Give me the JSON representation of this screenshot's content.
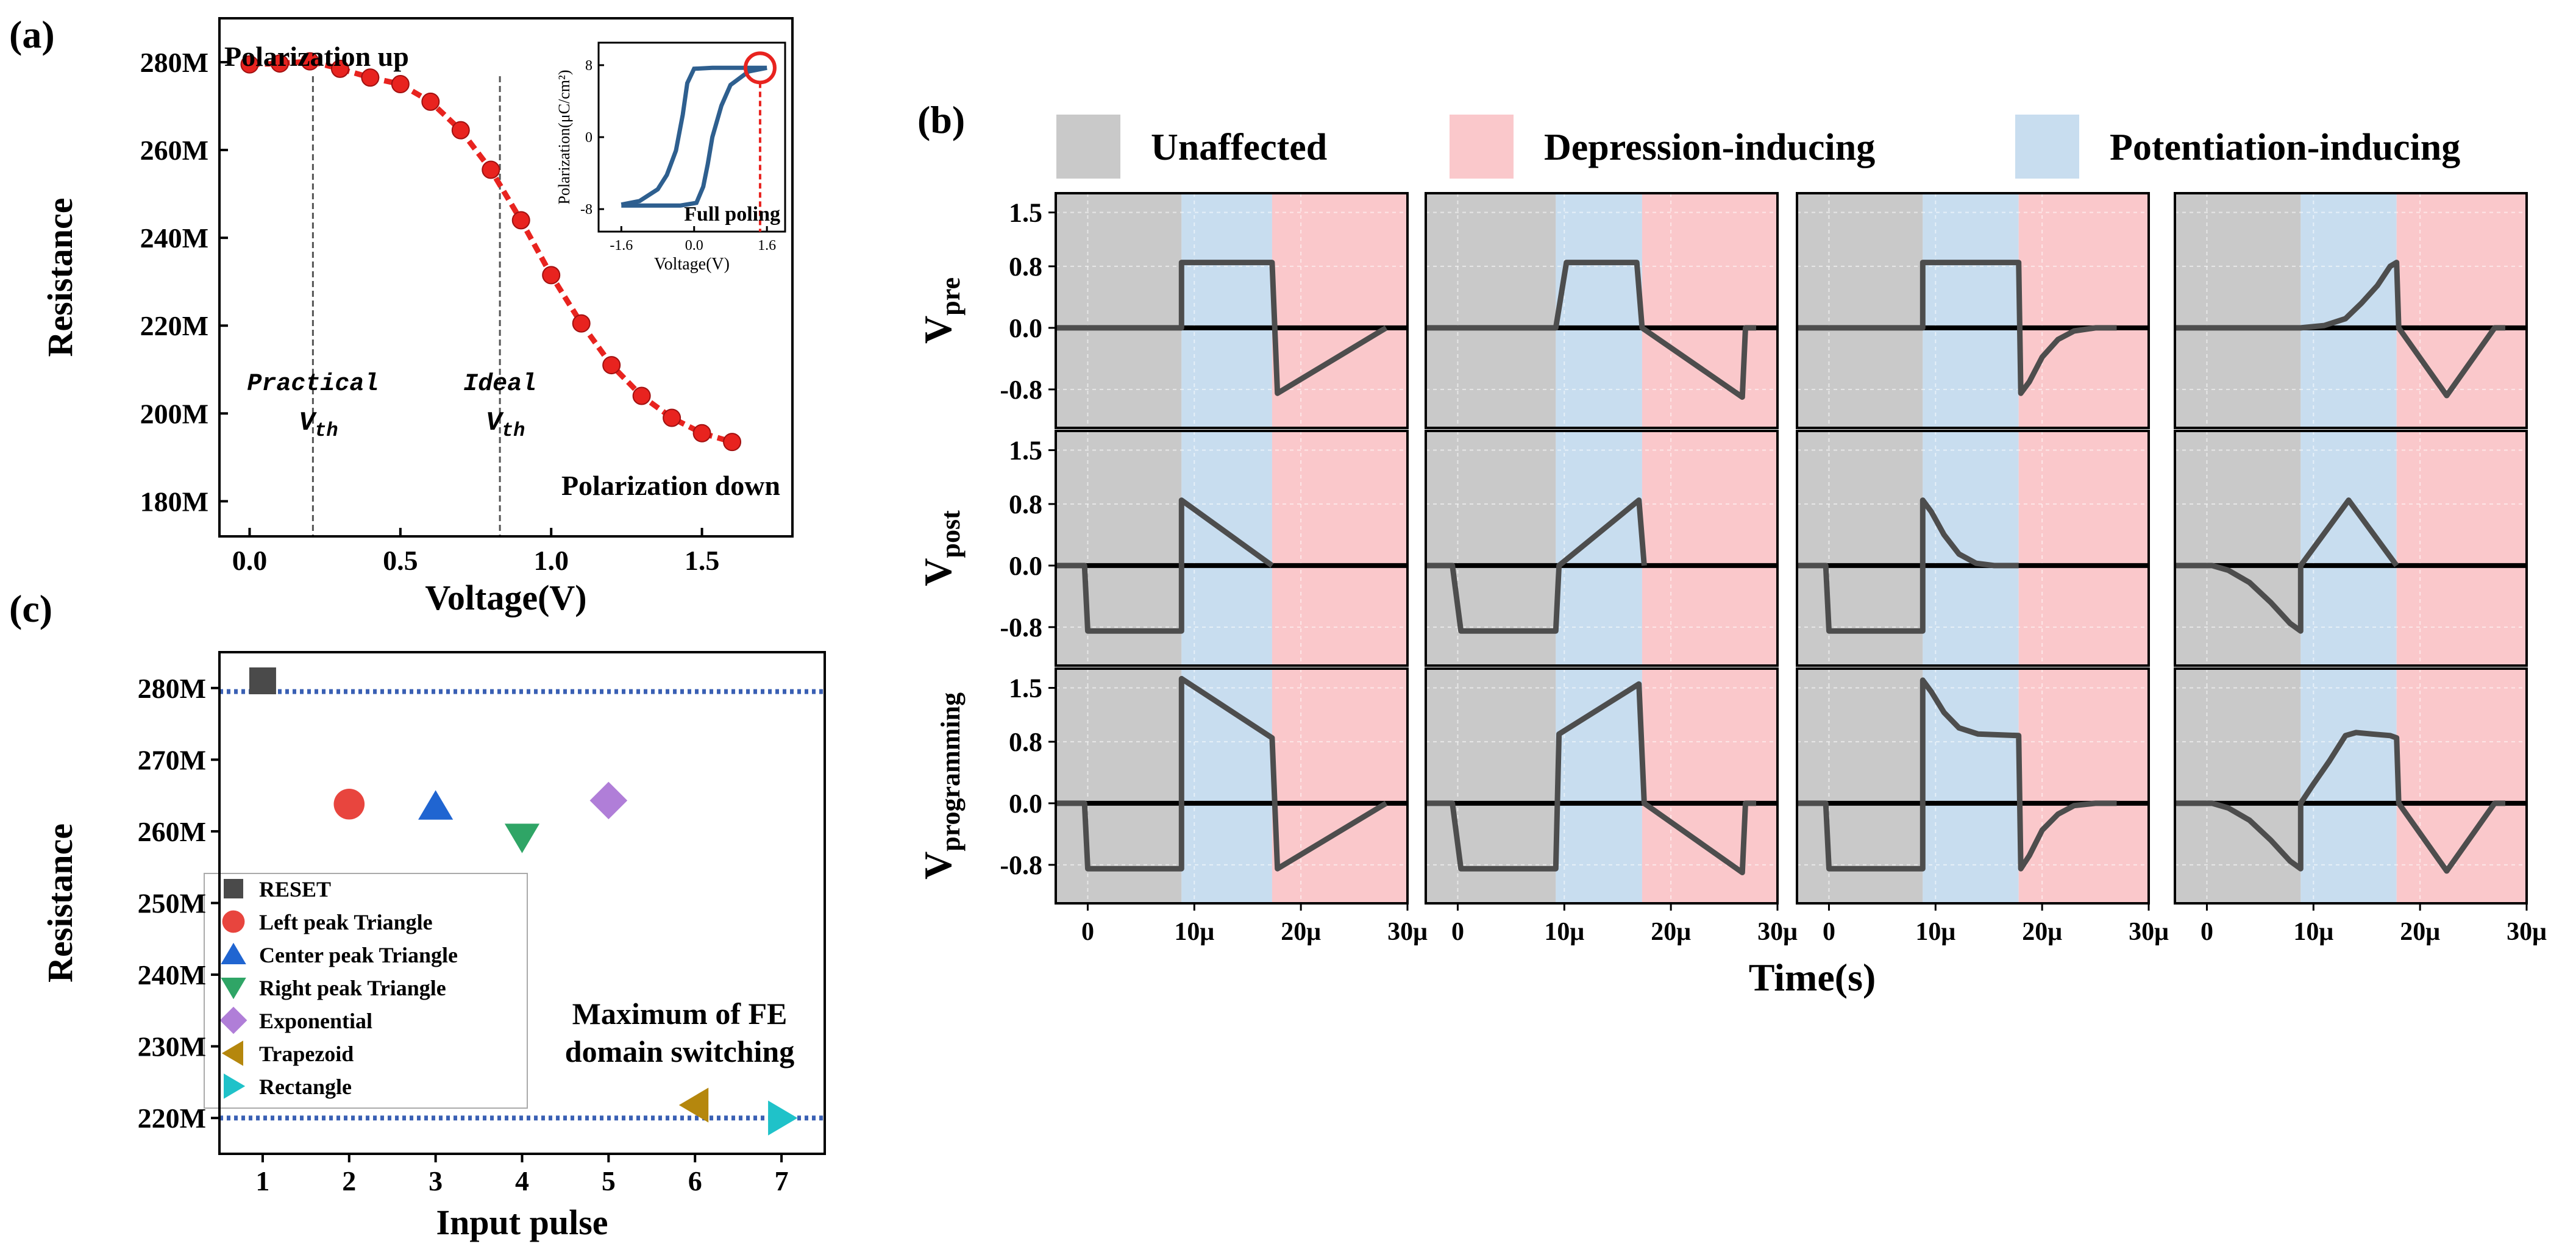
{
  "chart_data": [
    {
      "panel": "(a)",
      "type": "line",
      "xlabel": "Voltage(V)",
      "ylabel": "Resistance",
      "xlim": [
        -0.1,
        1.8
      ],
      "ylim": [
        172,
        290
      ],
      "x_ticks": [
        0.0,
        0.5,
        1.0,
        1.5
      ],
      "x_tick_labels": [
        "0.0",
        "0.5",
        "1.0",
        "1.5"
      ],
      "y_ticks": [
        180,
        200,
        220,
        240,
        260,
        280
      ],
      "y_tick_labels": [
        "180M",
        "200M",
        "220M",
        "240M",
        "260M",
        "280M"
      ],
      "series": [
        {
          "name": "Resistance",
          "color": "#e8231f",
          "x": [
            0.0,
            0.1,
            0.2,
            0.3,
            0.4,
            0.5,
            0.6,
            0.7,
            0.8,
            0.9,
            1.0,
            1.1,
            1.2,
            1.3,
            1.4,
            1.5,
            1.6
          ],
          "y": [
            279.5,
            279.7,
            280.2,
            278.5,
            276.5,
            275.0,
            271.0,
            264.5,
            255.5,
            244.0,
            231.5,
            220.5,
            211.0,
            204.0,
            199.0,
            195.5,
            193.5
          ]
        }
      ],
      "vlines": [
        0.21,
        0.83
      ],
      "annotations": {
        "top_left": "Polarization up",
        "bottom_right": "Polarization down",
        "practical_line1": "Practical",
        "practical_line2": "V",
        "practical_sub": "th",
        "ideal_line1": "Ideal",
        "ideal_line2": "V",
        "ideal_sub": "th"
      },
      "inset": {
        "type": "line",
        "xlabel": "Voltage(V)",
        "ylabel": "Polarization(μC/cm²)",
        "xlim": [
          -2.1,
          2.0
        ],
        "ylim": [
          -10.5,
          10.5
        ],
        "x_ticks": [
          -1.6,
          0.0,
          1.6
        ],
        "x_tick_labels": [
          "-1.6",
          "0.0",
          "1.6"
        ],
        "y_ticks": [
          -8,
          0,
          8
        ],
        "y_tick_labels": [
          "-8",
          "0",
          "8"
        ],
        "color": "#2e5f8f",
        "upper_branch": {
          "x": [
            -1.6,
            -1.2,
            -0.8,
            -0.6,
            -0.4,
            -0.25,
            -0.15,
            0.0,
            0.4,
            0.8,
            1.2,
            1.6
          ],
          "y": [
            -7.5,
            -7.1,
            -5.8,
            -4.2,
            -1.5,
            2.5,
            6.0,
            7.6,
            7.7,
            7.7,
            7.7,
            7.7
          ]
        },
        "lower_branch": {
          "x": [
            1.6,
            1.2,
            0.8,
            0.6,
            0.4,
            0.3,
            0.2,
            0.05,
            -0.3,
            -0.8,
            -1.6
          ],
          "y": [
            7.7,
            7.3,
            5.8,
            3.5,
            0.0,
            -3.0,
            -5.5,
            -7.3,
            -7.6,
            -7.6,
            -7.6
          ]
        },
        "full_poling_x": 1.45,
        "full_poling_y": 7.7,
        "full_poling_label": "Full poling"
      }
    },
    {
      "panel": "(b)",
      "type": "line",
      "xlabel": "Time(s)",
      "legend": [
        {
          "label": "Unaffected",
          "color": "#c9c9c9"
        },
        {
          "label": "Depression-inducing",
          "color": "#fac8cb"
        },
        {
          "label": "Potentiation-inducing",
          "color": "#c8ddef"
        }
      ],
      "row_labels": [
        {
          "main": "V",
          "sub": "pre"
        },
        {
          "main": "V",
          "sub": "post"
        },
        {
          "main": "V",
          "sub": "programming"
        }
      ],
      "xlim": [
        -3,
        30
      ],
      "ylim": [
        -1.3,
        1.75
      ],
      "x_ticks": [
        0,
        10,
        20,
        30
      ],
      "x_tick_labels": [
        "0",
        "10μ",
        "20μ",
        "30μ"
      ],
      "y_ticks": [
        -0.8,
        0.0,
        0.8,
        1.5
      ],
      "y_tick_labels": [
        "-0.8",
        "0.0",
        "0.8",
        "1.5"
      ],
      "columns": [
        {
          "regions": [
            [
              -3,
              8.8,
              "gray"
            ],
            [
              8.8,
              17.3,
              "blue"
            ],
            [
              17.3,
              30,
              "red"
            ]
          ],
          "pre": [
            [
              -3,
              0
            ],
            [
              8.8,
              0
            ],
            [
              8.8,
              0.85
            ],
            [
              17.3,
              0.85
            ],
            [
              17.8,
              -0.85
            ],
            [
              28,
              0
            ]
          ],
          "post": [
            [
              -3,
              0
            ],
            [
              -0.3,
              0
            ],
            [
              0,
              -0.85
            ],
            [
              8.8,
              -0.85
            ],
            [
              8.8,
              0.85
            ],
            [
              17.3,
              0
            ]
          ],
          "prog": [
            [
              -3,
              0
            ],
            [
              -0.3,
              0
            ],
            [
              0,
              -0.85
            ],
            [
              8.8,
              -0.85
            ],
            [
              8.8,
              1.62
            ],
            [
              17.3,
              0.85
            ],
            [
              17.8,
              -0.85
            ],
            [
              28,
              0
            ]
          ]
        },
        {
          "regions": [
            [
              -3,
              9.2,
              "gray"
            ],
            [
              9.2,
              17.3,
              "blue"
            ],
            [
              17.3,
              30,
              "red"
            ]
          ],
          "pre": [
            [
              -3,
              0
            ],
            [
              9.2,
              0
            ],
            [
              10.2,
              0.85
            ],
            [
              16.8,
              0.85
            ],
            [
              17.3,
              0
            ],
            [
              26.7,
              -0.9
            ],
            [
              27,
              0
            ],
            [
              28,
              0
            ]
          ],
          "post": [
            [
              -3,
              0
            ],
            [
              -0.5,
              0
            ],
            [
              0.3,
              -0.85
            ],
            [
              9.2,
              -0.85
            ],
            [
              9.5,
              0
            ],
            [
              17,
              0.85
            ],
            [
              17.5,
              0
            ]
          ],
          "prog": [
            [
              -3,
              0
            ],
            [
              -0.5,
              0
            ],
            [
              0.3,
              -0.85
            ],
            [
              9.2,
              -0.85
            ],
            [
              9.5,
              0.9
            ],
            [
              17,
              1.55
            ],
            [
              17.5,
              0
            ],
            [
              26.7,
              -0.9
            ],
            [
              27,
              0
            ],
            [
              28,
              0
            ]
          ]
        },
        {
          "regions": [
            [
              -3,
              8.8,
              "gray"
            ],
            [
              8.8,
              17.8,
              "blue"
            ],
            [
              17.8,
              30,
              "red"
            ]
          ],
          "pre": [
            [
              -3,
              0
            ],
            [
              8.8,
              0
            ],
            [
              8.8,
              0.85
            ],
            [
              17.8,
              0.85
            ],
            [
              18,
              -0.85
            ],
            [
              18.8,
              -0.7
            ],
            [
              20,
              -0.38
            ],
            [
              21.5,
              -0.15
            ],
            [
              23,
              -0.04
            ],
            [
              25,
              0
            ],
            [
              27,
              0
            ]
          ],
          "post": [
            [
              -3,
              0
            ],
            [
              -0.3,
              0
            ],
            [
              0,
              -0.85
            ],
            [
              8.8,
              -0.85
            ],
            [
              8.8,
              0.85
            ],
            [
              9.6,
              0.7
            ],
            [
              10.8,
              0.4
            ],
            [
              12.2,
              0.15
            ],
            [
              13.8,
              0.03
            ],
            [
              15.5,
              0
            ],
            [
              17.8,
              0
            ]
          ],
          "prog": [
            [
              -3,
              0
            ],
            [
              -0.3,
              0
            ],
            [
              0,
              -0.85
            ],
            [
              8.8,
              -0.85
            ],
            [
              8.8,
              1.6
            ],
            [
              9.6,
              1.45
            ],
            [
              10.8,
              1.18
            ],
            [
              12.2,
              0.98
            ],
            [
              14,
              0.9
            ],
            [
              17.8,
              0.88
            ],
            [
              18,
              -0.85
            ],
            [
              18.8,
              -0.68
            ],
            [
              20,
              -0.35
            ],
            [
              21.5,
              -0.14
            ],
            [
              23,
              -0.03
            ],
            [
              25,
              0
            ],
            [
              27,
              0
            ]
          ]
        },
        {
          "regions": [
            [
              -3,
              8.8,
              "gray"
            ],
            [
              8.8,
              17.8,
              "blue"
            ],
            [
              17.8,
              30,
              "red"
            ]
          ],
          "pre": [
            [
              -3,
              0
            ],
            [
              8.8,
              0
            ],
            [
              11,
              0.03
            ],
            [
              13,
              0.12
            ],
            [
              14.5,
              0.32
            ],
            [
              16,
              0.55
            ],
            [
              17.2,
              0.8
            ],
            [
              17.8,
              0.85
            ],
            [
              18,
              0
            ],
            [
              22.5,
              -0.88
            ],
            [
              27,
              0
            ],
            [
              28,
              0
            ]
          ],
          "post": [
            [
              -3,
              0
            ],
            [
              0.5,
              0
            ],
            [
              2,
              -0.06
            ],
            [
              4,
              -0.22
            ],
            [
              6,
              -0.48
            ],
            [
              7.8,
              -0.75
            ],
            [
              8.8,
              -0.85
            ],
            [
              8.8,
              0
            ],
            [
              13.3,
              0.85
            ],
            [
              17.8,
              0
            ]
          ],
          "prog": [
            [
              -3,
              0
            ],
            [
              0.5,
              0
            ],
            [
              2,
              -0.06
            ],
            [
              4,
              -0.22
            ],
            [
              6,
              -0.48
            ],
            [
              7.8,
              -0.75
            ],
            [
              8.8,
              -0.85
            ],
            [
              8.8,
              0
            ],
            [
              10,
              0.25
            ],
            [
              11.5,
              0.55
            ],
            [
              13,
              0.88
            ],
            [
              14,
              0.92
            ],
            [
              15.5,
              0.9
            ],
            [
              17.2,
              0.88
            ],
            [
              17.8,
              0.85
            ],
            [
              18,
              0
            ],
            [
              22.5,
              -0.88
            ],
            [
              27,
              0
            ],
            [
              28,
              0
            ]
          ]
        }
      ]
    },
    {
      "panel": "(c)",
      "type": "scatter",
      "xlabel": "Input pulse",
      "ylabel": "Resistance",
      "xlim": [
        0.5,
        7.5
      ],
      "ylim": [
        215,
        285
      ],
      "x_ticks": [
        1,
        2,
        3,
        4,
        5,
        6,
        7
      ],
      "x_tick_labels": [
        "1",
        "2",
        "3",
        "4",
        "5",
        "6",
        "7"
      ],
      "y_ticks": [
        220,
        230,
        240,
        250,
        260,
        270,
        280
      ],
      "y_tick_labels": [
        "220M",
        "230M",
        "240M",
        "250M",
        "260M",
        "270M",
        "280M"
      ],
      "hlines": [
        279.5,
        220
      ],
      "hline_color": "#3a60b4",
      "annotation_line1": "Maximum of FE",
      "annotation_line2": "domain switching",
      "points": [
        {
          "name": "RESET",
          "x": 1,
          "y": 281,
          "marker": "square",
          "color": "#4a4a4a"
        },
        {
          "name": "Left peak Triangle",
          "x": 2,
          "y": 263.8,
          "marker": "circle",
          "color": "#e8453e"
        },
        {
          "name": "Center peak Triangle",
          "x": 3,
          "y": 263.5,
          "marker": "triangle-up",
          "color": "#2065d1"
        },
        {
          "name": "Right peak Triangle",
          "x": 4,
          "y": 259.2,
          "marker": "triangle-down",
          "color": "#2fa566"
        },
        {
          "name": "Exponential",
          "x": 5,
          "y": 264.3,
          "marker": "diamond",
          "color": "#b07ed8"
        },
        {
          "name": "Trapezoid",
          "x": 6,
          "y": 221.8,
          "marker": "triangle-left",
          "color": "#b5870d"
        },
        {
          "name": "Rectangle",
          "x": 7,
          "y": 220,
          "marker": "triangle-right",
          "color": "#1fc2c9"
        }
      ]
    }
  ],
  "panel_labels": {
    "a": "(a)",
    "b": "(b)",
    "c": "(c)"
  },
  "colors": {
    "gray": "#c9c9c9",
    "blue": "#c8ddef",
    "red": "#fac8cb",
    "trace": "#4d4d4d",
    "red_curve": "#e8231f"
  }
}
